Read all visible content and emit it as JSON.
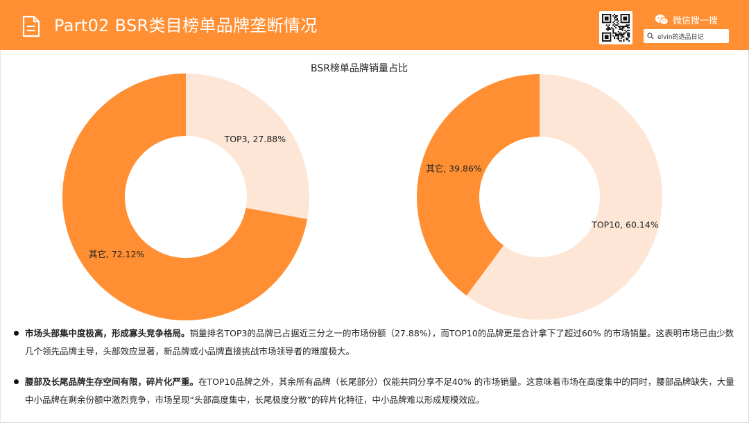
{
  "header": {
    "title": "Part02 BSR类目榜单品牌垄断情况",
    "wechat_label": "微信搜一搜",
    "search_text": "elvin的选品日记",
    "icons": {
      "doc": "document-icon",
      "wechat": "wechat-icon",
      "search": "search-icon",
      "qr": "qr-code"
    }
  },
  "colors": {
    "accent": "#ff8f32",
    "light": "#fde6d6",
    "text": "#222222"
  },
  "chart_data": {
    "type": "pie",
    "title": "BSR榜单品牌销量占比",
    "charts": [
      {
        "slices": [
          {
            "label": "TOP3, 27.88%",
            "name": "TOP3",
            "value": 27.88,
            "color": "#fde6d6"
          },
          {
            "label": "其它, 72.12%",
            "name": "其它",
            "value": 72.12,
            "color": "#ff8f32"
          }
        ]
      },
      {
        "slices": [
          {
            "label": "TOP10, 60.14%",
            "name": "TOP10",
            "value": 60.14,
            "color": "#fde6d6"
          },
          {
            "label": "其它, 39.86%",
            "name": "其它",
            "value": 39.86,
            "color": "#ff8f32"
          }
        ]
      }
    ]
  },
  "bullets": [
    {
      "bold": "市场头部集中度极高，形成寡头竞争格局。",
      "text": "销量排名TOP3的品牌已占据近三分之一的市场份额（27.88%），而TOP10的品牌更是合计拿下了超过60% 的市场销量。这表明市场已由少数几个领先品牌主导，头部效应显著，新品牌或小品牌直接挑战市场领导者的难度极大。"
    },
    {
      "bold": "腰部及长尾品牌生存空间有限，碎片化严重。",
      "text": "在TOP10品牌之外，其余所有品牌（长尾部分）仅能共同分享不足40% 的市场销量。这意味着市场在高度集中的同时，腰部品牌缺失，大量中小品牌在剩余份额中激烈竞争，市场呈现“头部高度集中，长尾极度分散”的碎片化特征，中小品牌难以形成规模效应。"
    }
  ]
}
